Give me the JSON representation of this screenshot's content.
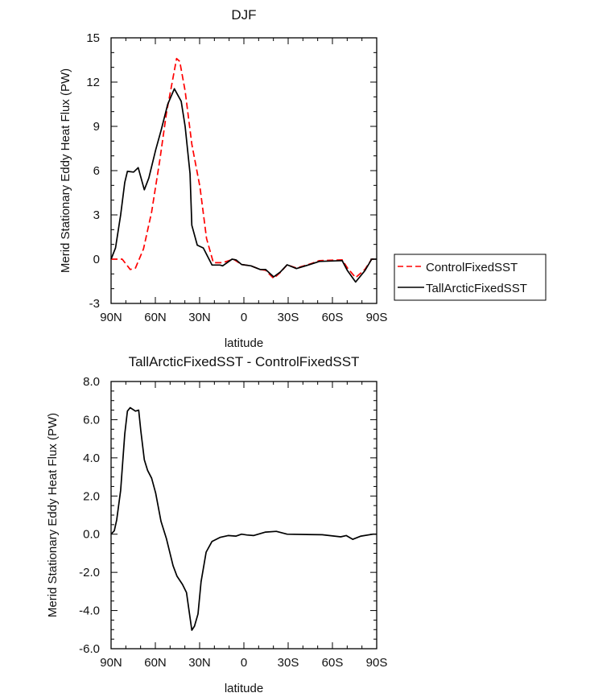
{
  "chart_data": [
    {
      "type": "line",
      "title": "DJF",
      "xlabel": "latitude",
      "ylabel": "Merid Stationary Eddy Heat Flux (PW)",
      "xlim": [
        90,
        -90
      ],
      "ylim": [
        -3,
        15
      ],
      "x_ticks": [
        90,
        60,
        30,
        0,
        -30,
        -60,
        -90
      ],
      "x_tick_labels": [
        "90N",
        "60N",
        "30N",
        "0",
        "30S",
        "60S",
        "90S"
      ],
      "y_ticks": [
        -3,
        0,
        3,
        6,
        9,
        12,
        15
      ],
      "y_tick_labels": [
        "-3",
        "0",
        "3",
        "6",
        "9",
        "12",
        "15"
      ],
      "legend_position": "outside-right",
      "series": [
        {
          "name": "ControlFixedSST",
          "color": "#ff0000",
          "dash": "dashed",
          "x": [
            90,
            82.5,
            77,
            73.5,
            68,
            62.5,
            57,
            52.5,
            45.6,
            43.5,
            39.8,
            35.3,
            29.8,
            25.3,
            20.7,
            14.4,
            7.1,
            1.6,
            -4.8,
            -11,
            -14.7,
            -20.2,
            -24.7,
            -29.3,
            -35.6,
            -45.7,
            -51.1,
            -66.6,
            -70.2,
            -75.7,
            -82,
            -86.6,
            -90
          ],
          "y": [
            0,
            0,
            -0.7,
            -0.6,
            0.7,
            3.2,
            6.7,
            9.9,
            13.6,
            13.4,
            11.4,
            7.8,
            4.9,
            1.4,
            -0.24,
            -0.24,
            0,
            -0.36,
            -0.45,
            -0.7,
            -0.75,
            -1.3,
            -0.9,
            -0.38,
            -0.6,
            -0.3,
            -0.1,
            -0.05,
            -0.6,
            -1.25,
            -0.7,
            0,
            0
          ]
        },
        {
          "name": "TallArcticFixedSST",
          "color": "#000000",
          "dash": "solid",
          "x": [
            90,
            87,
            83.5,
            80.7,
            78.9,
            74.7,
            71.6,
            67.5,
            64.4,
            59.8,
            56.2,
            51.6,
            47.1,
            42.5,
            39.8,
            36.5,
            35.3,
            31.6,
            27.5,
            21.6,
            16.2,
            14.4,
            8,
            5.3,
            1.6,
            -4.8,
            -11,
            -14.7,
            -20.2,
            -24.7,
            -29.3,
            -35.6,
            -45.7,
            -51.1,
            -66.6,
            -70.2,
            -75.7,
            -82,
            -86.6,
            -90
          ],
          "y": [
            0,
            0.76,
            3.0,
            5.2,
            5.95,
            5.9,
            6.2,
            4.7,
            5.5,
            7.4,
            8.7,
            10.5,
            11.55,
            10.7,
            9.0,
            5.8,
            2.3,
            0.95,
            0.76,
            -0.4,
            -0.4,
            -0.45,
            0,
            -0.05,
            -0.36,
            -0.45,
            -0.7,
            -0.7,
            -1.2,
            -0.87,
            -0.38,
            -0.64,
            -0.33,
            -0.15,
            -0.1,
            -0.78,
            -1.55,
            -0.78,
            0,
            0
          ]
        }
      ]
    },
    {
      "type": "line",
      "title": "TallArcticFixedSST - ControlFixedSST",
      "xlabel": "latitude",
      "ylabel": "Merid Stationary Eddy Heat Flux (PW)",
      "xlim": [
        90,
        -90
      ],
      "ylim": [
        -6,
        8
      ],
      "x_ticks": [
        90,
        60,
        30,
        0,
        -30,
        -60,
        -90
      ],
      "x_tick_labels": [
        "90N",
        "60N",
        "30N",
        "0",
        "30S",
        "60S",
        "90S"
      ],
      "y_ticks": [
        -6,
        -4,
        -2,
        0,
        2,
        4,
        6,
        8
      ],
      "y_tick_labels": [
        "-6.0",
        "-4.0",
        "-2.0",
        "0.0",
        "2.0",
        "4.0",
        "6.0",
        "8.0"
      ],
      "series": [
        {
          "color": "#000000",
          "dash": "solid",
          "x": [
            90,
            87.8,
            86.2,
            83.5,
            80.7,
            78.9,
            77.1,
            73.5,
            71.3,
            69.8,
            67.5,
            65.3,
            62.5,
            59.8,
            56.2,
            52.5,
            48,
            45.3,
            41.6,
            38.9,
            35.3,
            33.5,
            31.1,
            29,
            25.6,
            21.6,
            16.2,
            10.7,
            5.3,
            1.6,
            -2,
            -6.5,
            -14.7,
            -22,
            -29.3,
            -53,
            -65.6,
            -69.3,
            -73.8,
            -79.3,
            -87.5,
            -90
          ],
          "y": [
            0,
            0.18,
            0.75,
            2.3,
            5.25,
            6.45,
            6.63,
            6.45,
            6.5,
            5.4,
            3.9,
            3.35,
            2.93,
            2.15,
            0.68,
            -0.24,
            -1.65,
            -2.2,
            -2.63,
            -3.06,
            -5.03,
            -4.82,
            -4.18,
            -2.49,
            -0.94,
            -0.38,
            -0.17,
            -0.07,
            -0.1,
            0,
            -0.04,
            -0.07,
            0.11,
            0.15,
            0,
            -0.03,
            -0.14,
            -0.07,
            -0.27,
            -0.1,
            0,
            0
          ]
        }
      ]
    }
  ]
}
